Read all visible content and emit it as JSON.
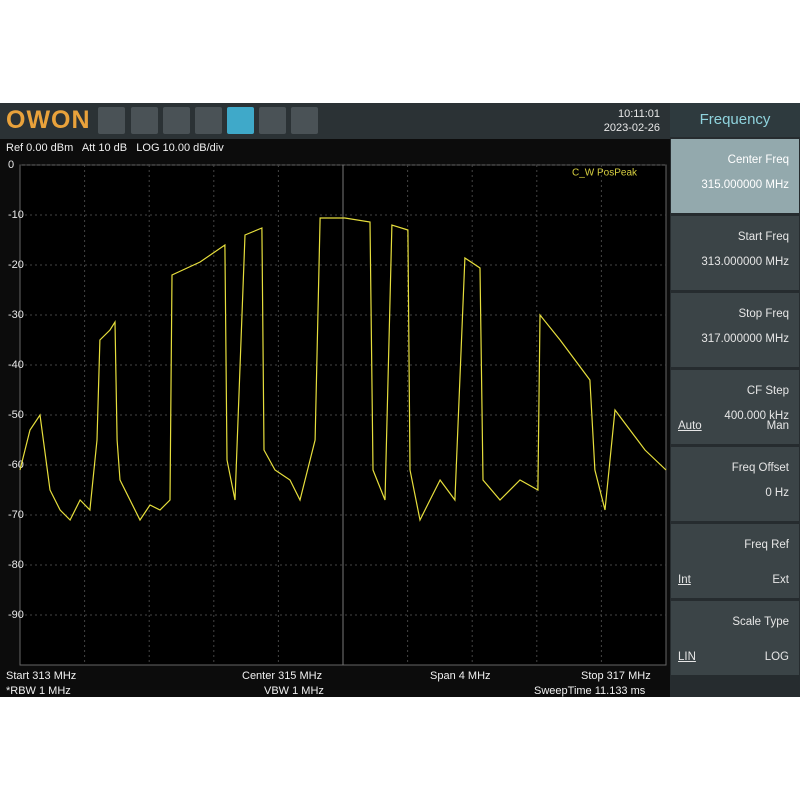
{
  "header": {
    "brand": "OWON",
    "time": "10:11:01",
    "date": "2023-02-26"
  },
  "status": {
    "ref": "Ref 0.00 dBm",
    "att": "Att 10 dB",
    "scale": "LOG 10.00 dB/div"
  },
  "footer": {
    "start": "Start 313 MHz",
    "center": "Center 315 MHz",
    "span": "Span 4 MHz",
    "stop": "Stop 317 MHz",
    "rbw": "*RBW 1 MHz",
    "vbw": "VBW 1 MHz",
    "sweep_time": "SweepTime 11.133 ms"
  },
  "menu": {
    "title": "Frequency",
    "items": [
      {
        "label": "Center Freq",
        "value": "315.000000 MHz",
        "selected": true
      },
      {
        "label": "Start Freq",
        "value": "313.000000 MHz"
      },
      {
        "label": "Stop Freq",
        "value": "317.000000 MHz"
      },
      {
        "label": "CF Step",
        "value": "400.000 kHz",
        "options": [
          "Auto",
          "Man"
        ]
      },
      {
        "label": "Freq Offset",
        "value": "0 Hz"
      },
      {
        "label": "Freq Ref",
        "options": [
          "Int",
          "Ext"
        ]
      },
      {
        "label": "Scale Type",
        "options": [
          "LIN",
          "LOG"
        ]
      }
    ]
  },
  "chart_data": {
    "type": "line",
    "trace_label": "C_W PosPeak",
    "color": "#e6de3c",
    "grid": true,
    "xlim": [
      313,
      317
    ],
    "ylim": [
      -100,
      0
    ],
    "yticks": [
      0,
      -10,
      -20,
      -30,
      -40,
      -50,
      -60,
      -70,
      -80,
      -90
    ],
    "x": [
      313.0,
      313.062,
      313.124,
      313.186,
      313.248,
      313.31,
      313.372,
      313.433,
      313.477,
      313.495,
      313.557,
      313.588,
      313.601,
      313.619,
      313.681,
      313.743,
      313.805,
      313.867,
      313.929,
      313.941,
      314.115,
      314.269,
      314.282,
      314.331,
      314.393,
      314.498,
      314.511,
      314.579,
      314.672,
      314.734,
      314.827,
      314.858,
      315.012,
      315.167,
      315.186,
      315.26,
      315.303,
      315.402,
      315.415,
      315.477,
      315.539,
      315.601,
      315.693,
      315.755,
      315.848,
      315.867,
      315.972,
      316.096,
      316.207,
      316.22,
      316.344,
      316.529,
      316.56,
      316.622,
      316.684,
      316.777,
      316.87,
      317.0
    ],
    "values": [
      -61,
      -53,
      -50,
      -65,
      -69,
      -71,
      -67,
      -69,
      -55,
      -35,
      -33,
      -31.4,
      -55,
      -63,
      -67,
      -71,
      -68,
      -69,
      -67,
      -22,
      -19.4,
      -16,
      -59,
      -67,
      -14,
      -12.6,
      -57,
      -61,
      -63,
      -67,
      -55,
      -10.6,
      -10.6,
      -11.4,
      -61,
      -67,
      -12,
      -13,
      -61,
      -71,
      -67,
      -63,
      -67,
      -18.6,
      -20.6,
      -63,
      -67,
      -63,
      -65,
      -30,
      -35,
      -43,
      -61,
      -69,
      -49,
      -53,
      -57,
      -61
    ]
  }
}
